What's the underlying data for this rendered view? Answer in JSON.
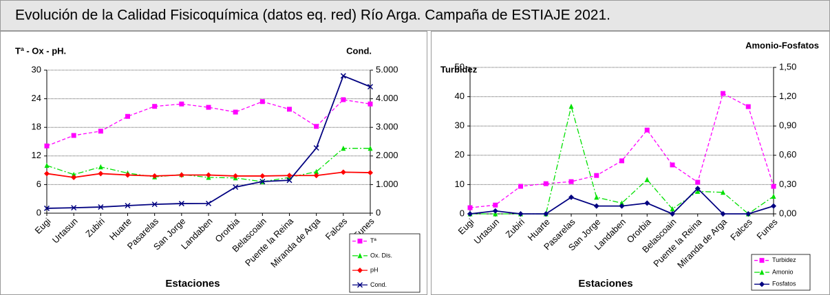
{
  "header": {
    "title": "Evolución de la Calidad Fisicoquímica (datos eq. red) Río Arga. Campaña de ESTIAJE 2021."
  },
  "chart_data": [
    {
      "type": "line",
      "ylabel": "Tª - Ox - pH.",
      "y2label": "Cond.",
      "xlabel": "Estaciones",
      "categories": [
        "Eugi",
        "Urtasun",
        "Zubiri",
        "Huarte",
        "Pasarelas",
        "San Jorge",
        "Landaben",
        "Ororbia",
        "Belascoain",
        "Puente la Reina",
        "Miranda de Arga",
        "Falces",
        "Funes"
      ],
      "ylim": [
        0,
        30
      ],
      "yticks": [
        0,
        6,
        12,
        18,
        24,
        30
      ],
      "y2lim": [
        0,
        5000
      ],
      "y2ticks": [
        0,
        {
          "value": 1000,
          "label": "1.000"
        },
        {
          "value": 2000,
          "label": "2.000"
        },
        {
          "value": 3000,
          "label": "3.000"
        },
        {
          "value": 4000,
          "label": "4.000"
        },
        {
          "value": 5000,
          "label": "5.000"
        }
      ],
      "grid": true,
      "legend": "lower right",
      "series": [
        {
          "name": "Tª",
          "color": "#ff00ff",
          "marker": "square",
          "dash": "dashed",
          "values": [
            14.1,
            16.3,
            17.2,
            20.3,
            22.4,
            22.9,
            22.2,
            21.2,
            23.4,
            21.8,
            18.2,
            23.8,
            22.9
          ]
        },
        {
          "name": "Ox. Dis.",
          "color": "#00e000",
          "marker": "triangle",
          "dash": "dashdot",
          "values": [
            10.0,
            8.1,
            9.7,
            8.4,
            7.6,
            8.1,
            7.5,
            7.4,
            6.6,
            7.5,
            8.7,
            13.6,
            13.6
          ]
        },
        {
          "name": "pH",
          "color": "#ff0000",
          "marker": "diamond",
          "dash": "solid",
          "values": [
            8.3,
            7.5,
            8.3,
            8.0,
            7.8,
            8.0,
            8.0,
            7.8,
            7.8,
            7.9,
            7.9,
            8.6,
            8.5
          ]
        },
        {
          "name": "Cond.",
          "color": "#000080",
          "marker": "x",
          "dash": "solid",
          "axis": "y2",
          "values": [
            170,
            190,
            215,
            265,
            310,
            335,
            340,
            910,
            1105,
            1150,
            2280,
            4800,
            4420
          ]
        }
      ]
    },
    {
      "type": "line",
      "ylabel": "Turbidez",
      "y2label": "Amonio-Fosfatos",
      "xlabel": "Estaciones",
      "categories": [
        "Eugi",
        "Urtasun",
        "Zubiri",
        "Huarte",
        "Pasarelas",
        "San Jorge",
        "Landaben",
        "Ororbia",
        "Belascoain",
        "Puente la Reina",
        "Miranda de Arga",
        "Falces",
        "Funes"
      ],
      "ylim": [
        0,
        50
      ],
      "yticks": [
        0,
        10,
        20,
        30,
        40,
        50
      ],
      "y2lim": [
        0,
        1.5
      ],
      "y2ticks": [
        {
          "value": 0,
          "label": "0,00"
        },
        {
          "value": 0.3,
          "label": "0,30"
        },
        {
          "value": 0.6,
          "label": "0,60"
        },
        {
          "value": 0.9,
          "label": "0,90"
        },
        {
          "value": 1.2,
          "label": "1,20"
        },
        {
          "value": 1.5,
          "label": "1,50"
        }
      ],
      "grid": true,
      "legend": "lower right",
      "series": [
        {
          "name": "Turbidez",
          "color": "#ff00ff",
          "marker": "square",
          "dash": "dashed",
          "values": [
            2.1,
            3.0,
            9.4,
            10.3,
            11.0,
            13.1,
            18.1,
            28.6,
            16.7,
            10.8,
            41.1,
            36.6,
            9.4
          ]
        },
        {
          "name": "Amonio",
          "color": "#00e000",
          "marker": "triangle",
          "dash": "dashdot",
          "axis": "y2",
          "values": [
            0,
            0,
            0,
            0,
            1.1,
            0.17,
            0.11,
            0.35,
            0.05,
            0.23,
            0.22,
            0,
            0.18
          ]
        },
        {
          "name": "Fosfatos",
          "color": "#000080",
          "marker": "diamond",
          "dash": "solid",
          "axis": "y2",
          "values": [
            0,
            0.03,
            0,
            0,
            0.17,
            0.08,
            0.08,
            0.11,
            0,
            0.26,
            0,
            0,
            0.08
          ]
        }
      ]
    }
  ]
}
